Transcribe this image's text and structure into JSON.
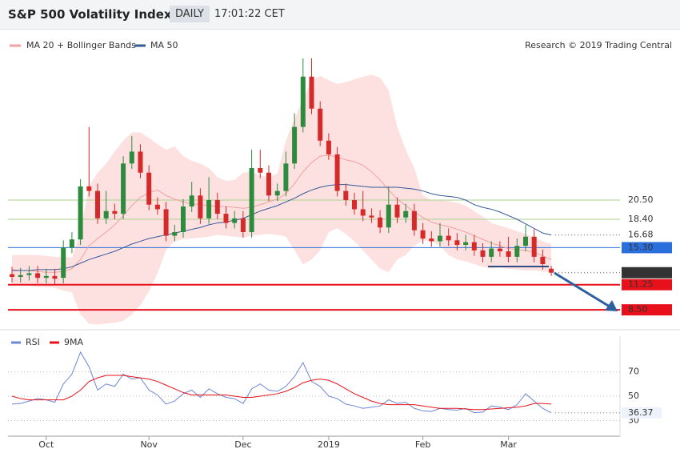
{
  "header": {
    "title": "S&P 500 Volatility Index",
    "period": "DAILY",
    "time": "17:01:22 CET"
  },
  "chart_data": [
    {
      "type": "candlestick",
      "legend": [
        "MA 20 + Bollinger Bands",
        "MA 50"
      ],
      "source": "Research © 2019 Trading Central",
      "categories": [
        null,
        null,
        null,
        null,
        "Oct",
        null,
        null,
        null,
        null,
        null,
        null,
        null,
        null,
        null,
        null,
        null,
        "Nov",
        null,
        null,
        null,
        null,
        null,
        null,
        null,
        null,
        null,
        null,
        "Dec",
        null,
        null,
        null,
        null,
        null,
        null,
        null,
        null,
        null,
        "2019",
        null,
        null,
        null,
        null,
        null,
        null,
        null,
        null,
        null,
        null,
        "Feb",
        null,
        null,
        null,
        null,
        null,
        null,
        null,
        null,
        null,
        "Mar",
        null,
        null,
        null,
        null,
        null
      ],
      "open": [
        12.4,
        12.1,
        12.3,
        12.5,
        12.0,
        12.2,
        12.0,
        15.3,
        16.2,
        22.0,
        21.5,
        18.5,
        19.3,
        19.0,
        24.5,
        25.8,
        23.5,
        20.0,
        19.5,
        16.6,
        17.0,
        19.8,
        21.0,
        18.5,
        20.5,
        19.0,
        18.0,
        18.5,
        17.0,
        24.0,
        23.5,
        21.0,
        21.5,
        24.5,
        28.5,
        34.0,
        30.5,
        27.0,
        25.5,
        21.5,
        20.5,
        19.5,
        18.8,
        18.6,
        17.5,
        20.0,
        18.6,
        19.3,
        17.2,
        16.3,
        16.0,
        16.6,
        16.1,
        15.6,
        15.9,
        15.0,
        14.3,
        15.2,
        14.9,
        14.3,
        15.5,
        16.5,
        14.3,
        13.0
      ],
      "high": [
        13.2,
        13.1,
        13.3,
        13.3,
        13.0,
        13.0,
        16.1,
        17.0,
        22.8,
        28.5,
        22.3,
        21.5,
        20.1,
        25.3,
        27.5,
        26.6,
        24.3,
        20.8,
        20.3,
        17.8,
        20.6,
        22.5,
        21.8,
        23.0,
        21.3,
        19.8,
        19.3,
        19.3,
        26.0,
        26.0,
        24.3,
        22.3,
        25.8,
        30.0,
        36.0,
        36.0,
        31.3,
        27.8,
        26.3,
        22.3,
        21.3,
        21.5,
        19.6,
        19.4,
        22.0,
        20.8,
        20.1,
        20.1,
        18.0,
        17.1,
        18.0,
        17.4,
        16.9,
        16.7,
        16.7,
        15.8,
        16.0,
        16.0,
        16.5,
        16.3,
        17.8,
        17.3,
        15.1,
        13.3
      ],
      "low": [
        11.5,
        11.5,
        11.7,
        11.4,
        11.4,
        11.3,
        11.4,
        14.7,
        15.6,
        20.9,
        17.9,
        17.9,
        18.4,
        18.4,
        23.9,
        22.9,
        19.4,
        18.9,
        16.0,
        16.0,
        16.4,
        19.2,
        17.9,
        17.9,
        18.4,
        17.4,
        17.4,
        16.4,
        16.4,
        22.9,
        20.4,
        20.4,
        20.9,
        23.9,
        27.9,
        29.9,
        26.4,
        24.9,
        20.9,
        19.9,
        18.9,
        18.2,
        18.0,
        16.9,
        16.9,
        18.0,
        18.0,
        16.6,
        15.7,
        15.4,
        15.4,
        15.5,
        15.0,
        15.0,
        14.4,
        13.7,
        13.7,
        14.3,
        13.7,
        13.7,
        14.9,
        13.7,
        12.9,
        12.2
      ],
      "close": [
        12.1,
        12.3,
        12.5,
        12.0,
        12.2,
        11.9,
        15.3,
        16.2,
        22.0,
        21.5,
        18.5,
        19.3,
        19.0,
        24.5,
        25.8,
        23.5,
        20.0,
        19.5,
        16.6,
        17.0,
        19.8,
        21.0,
        18.5,
        20.5,
        19.0,
        18.0,
        18.5,
        17.0,
        24.0,
        23.5,
        21.0,
        21.5,
        24.5,
        28.5,
        34.0,
        30.5,
        27.0,
        25.5,
        21.5,
        20.5,
        19.5,
        18.8,
        18.6,
        17.5,
        20.0,
        18.6,
        19.3,
        17.2,
        16.3,
        16.0,
        16.6,
        16.1,
        15.6,
        15.9,
        15.0,
        14.3,
        15.2,
        14.9,
        14.3,
        15.5,
        16.5,
        14.3,
        13.5,
        12.56
      ],
      "up_color": "#2e8b3e",
      "down_color": "#d62a2a",
      "ma20": {
        "color": "#f2a0a0",
        "values": [
          12.9,
          12.8,
          12.8,
          12.7,
          12.6,
          12.6,
          12.7,
          13.0,
          14.0,
          15.5,
          16.3,
          17.0,
          17.8,
          18.8,
          19.9,
          20.8,
          21.3,
          21.6,
          21.0,
          20.6,
          20.3,
          20.1,
          20.0,
          19.9,
          19.8,
          19.8,
          19.7,
          19.6,
          19.7,
          20.0,
          20.3,
          20.6,
          21.2,
          22.3,
          23.6,
          24.6,
          25.3,
          25.4,
          25.2,
          24.9,
          24.7,
          24.3,
          23.6,
          22.7,
          21.6,
          20.6,
          19.9,
          19.2,
          18.6,
          18.1,
          17.8,
          17.6,
          17.3,
          17.0,
          16.6,
          16.2,
          15.8,
          15.5,
          15.2,
          15.1,
          15.0,
          14.8,
          14.4,
          14.0
        ]
      },
      "bands": {
        "color": "#fde0e0",
        "upper": [
          14.5,
          14.5,
          14.5,
          14.5,
          14.4,
          14.3,
          14.3,
          14.2,
          17.0,
          22.0,
          23.5,
          24.5,
          25.8,
          27.0,
          27.9,
          27.9,
          27.3,
          26.6,
          26.0,
          26.4,
          25.3,
          24.8,
          24.5,
          24.0,
          23.0,
          22.6,
          22.7,
          23.5,
          23.6,
          23.2,
          23.0,
          23.4,
          27.0,
          29.4,
          31.5,
          33.6,
          34.1,
          33.6,
          33.2,
          33.4,
          33.7,
          34.0,
          34.2,
          33.9,
          32.5,
          28.5,
          26.0,
          24.0,
          21.0,
          20.5,
          20.5,
          20.4,
          20.2,
          19.9,
          19.3,
          18.7,
          18.0,
          17.7,
          17.4,
          17.1,
          16.8,
          16.4,
          16.0,
          15.7
        ],
        "lower": [
          11.3,
          11.2,
          11.1,
          11.0,
          11.0,
          10.9,
          10.6,
          10.4,
          8.0,
          7.0,
          6.9,
          7.0,
          7.1,
          7.3,
          8.0,
          9.0,
          10.5,
          12.5,
          15.0,
          16.0,
          16.2,
          16.3,
          16.4,
          16.5,
          16.7,
          16.6,
          16.5,
          16.4,
          16.6,
          16.7,
          16.8,
          16.7,
          16.5,
          15.0,
          13.5,
          14.0,
          15.0,
          17.0,
          17.4,
          16.8,
          16.0,
          15.0,
          14.0,
          13.0,
          12.6,
          14.0,
          14.5,
          15.5,
          16.1,
          16.0,
          15.5,
          14.5,
          14.0,
          13.8,
          13.5,
          13.2,
          13.0,
          13.1,
          13.0,
          12.9,
          12.8,
          12.8,
          12.7,
          12.6
        ]
      },
      "ma50": {
        "color": "#35599a",
        "values": [
          12.8,
          12.8,
          12.8,
          12.9,
          12.9,
          12.9,
          13.0,
          13.2,
          13.6,
          14.0,
          14.3,
          14.6,
          14.9,
          15.3,
          15.7,
          16.0,
          16.3,
          16.5,
          16.7,
          16.9,
          17.1,
          17.3,
          17.5,
          17.8,
          18.0,
          18.1,
          18.3,
          18.5,
          18.9,
          19.3,
          19.6,
          19.9,
          20.3,
          20.7,
          21.2,
          21.6,
          21.9,
          22.1,
          22.2,
          22.2,
          22.1,
          22.0,
          21.9,
          21.9,
          21.9,
          21.9,
          21.8,
          21.7,
          21.5,
          21.2,
          21.0,
          20.9,
          20.8,
          20.5,
          20.0,
          19.7,
          19.5,
          19.2,
          18.8,
          18.4,
          17.9,
          17.4,
          16.9,
          16.68
        ]
      },
      "levels": [
        {
          "value": 20.5,
          "label": "20.50",
          "color": "#a9d18e",
          "style": "plain"
        },
        {
          "value": 18.4,
          "label": "18.40",
          "color": "#a9d18e",
          "style": "plain"
        },
        {
          "value": 15.3,
          "label": "15.30",
          "color": "#2a6fdb",
          "style": "box"
        },
        {
          "value": 11.25,
          "label": "11.25",
          "color": "#e8101a",
          "style": "box"
        },
        {
          "value": 8.5,
          "label": "8.50",
          "color": "#e8101a",
          "style": "box"
        }
      ],
      "ylim": [
        6.5,
        36.25
      ]
    },
    {
      "type": "line",
      "series": [
        {
          "name": "RSI",
          "color": "#6b86d6",
          "values": [
            43.5,
            44,
            46,
            48,
            47,
            45,
            60,
            68,
            86,
            74,
            55,
            60,
            58,
            68,
            64,
            65,
            55,
            51,
            43.5,
            46,
            52,
            55,
            49,
            56,
            52,
            49,
            48,
            44,
            56,
            60,
            55,
            54,
            58,
            66,
            77.5,
            62,
            58,
            50,
            48,
            43.5,
            42,
            40,
            41,
            42,
            47,
            44,
            45,
            40,
            38,
            37.5,
            40,
            39,
            38.5,
            40,
            36.5,
            37,
            42,
            41,
            39,
            43,
            52,
            46,
            40,
            36.37
          ]
        },
        {
          "name": "9MA",
          "color": "#e8101a",
          "values": [
            50,
            48,
            47,
            47,
            47,
            47,
            47,
            50,
            55,
            62,
            65,
            67,
            67,
            67,
            66,
            65,
            64,
            62,
            59,
            56,
            53,
            51,
            51,
            51,
            51,
            51,
            50,
            49,
            49,
            50,
            51,
            52,
            54,
            57,
            61,
            63,
            64,
            63,
            60,
            56,
            52,
            49,
            46,
            44,
            43,
            43,
            43,
            43,
            42,
            41,
            40,
            40,
            40,
            39.5,
            39,
            39,
            39.5,
            40,
            40.5,
            41,
            42,
            44,
            44,
            43.5
          ]
        }
      ],
      "ylim": [
        20.5,
        92.6
      ],
      "yticks": [
        70,
        50,
        30
      ]
    }
  ]
}
